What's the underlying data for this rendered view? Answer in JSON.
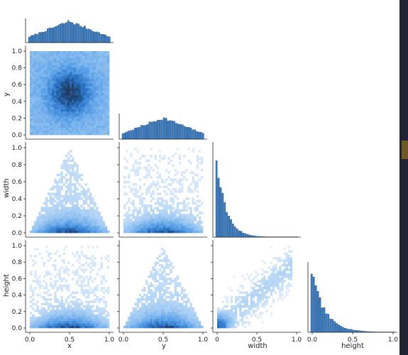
{
  "chart_data": {
    "type": "pairplot",
    "variables": [
      "x",
      "y",
      "width",
      "height"
    ],
    "layout": "lower-triangle (corner) with marginal histograms on the diagonal",
    "diagonal": "histogram",
    "off_diagonal": "2d hexbin/histogram density",
    "color": "#1f77b4",
    "axis_labels": {
      "x": "x",
      "y": "y",
      "width": "width",
      "height": "height"
    },
    "ranges": {
      "x": [
        0.0,
        1.0
      ],
      "y": [
        0.0,
        1.0
      ],
      "width": [
        0.0,
        1.0
      ],
      "height": [
        0.0,
        1.0
      ]
    },
    "ticks": [
      "0.0",
      "0.5",
      "1.0"
    ],
    "y_ticks_y": [
      "0.0",
      "0.2",
      "0.4",
      "0.6",
      "0.8",
      "1.0"
    ],
    "y_ticks_width_height": [
      "0.0",
      "0.2",
      "0.4",
      "0.6",
      "0.8",
      "1.0"
    ],
    "x_ticks_width": [
      "0",
      "0.5",
      "1.0"
    ],
    "diagonal_histograms": {
      "x": {
        "shape": "triangular-peaked",
        "bins": [
          0.05,
          0.1,
          0.15,
          0.2,
          0.25,
          0.3,
          0.35,
          0.4,
          0.45,
          0.5,
          0.55,
          0.6,
          0.65,
          0.7,
          0.75,
          0.8,
          0.85,
          0.9,
          0.95
        ],
        "counts": [
          0.25,
          0.33,
          0.42,
          0.5,
          0.58,
          0.66,
          0.75,
          0.83,
          0.9,
          1.0,
          0.9,
          0.83,
          0.75,
          0.66,
          0.58,
          0.5,
          0.42,
          0.33,
          0.25
        ]
      },
      "y": {
        "shape": "triangular-peaked",
        "bins": [
          0.05,
          0.1,
          0.15,
          0.2,
          0.25,
          0.3,
          0.35,
          0.4,
          0.45,
          0.5,
          0.55,
          0.6,
          0.65,
          0.7,
          0.75,
          0.8,
          0.85,
          0.9,
          0.95
        ],
        "counts": [
          0.2,
          0.28,
          0.36,
          0.46,
          0.56,
          0.65,
          0.75,
          0.84,
          0.93,
          1.0,
          0.93,
          0.84,
          0.75,
          0.65,
          0.56,
          0.46,
          0.36,
          0.28,
          0.2
        ]
      },
      "width": {
        "shape": "exponential-decay",
        "bins": [
          0.025,
          0.05,
          0.075,
          0.1,
          0.125,
          0.15,
          0.175,
          0.2,
          0.25,
          0.3,
          0.35,
          0.4,
          0.5,
          0.6,
          0.7,
          0.8,
          0.9,
          1.0
        ],
        "counts": [
          1.0,
          0.82,
          0.6,
          0.45,
          0.34,
          0.26,
          0.2,
          0.15,
          0.09,
          0.06,
          0.04,
          0.03,
          0.015,
          0.01,
          0.006,
          0.004,
          0.002,
          0.001
        ]
      },
      "height": {
        "shape": "exponential-decay",
        "bins": [
          0.025,
          0.05,
          0.075,
          0.1,
          0.125,
          0.15,
          0.175,
          0.2,
          0.25,
          0.3,
          0.35,
          0.4,
          0.5,
          0.6,
          0.7,
          0.8,
          0.9,
          1.0
        ],
        "counts": [
          1.0,
          0.92,
          0.78,
          0.62,
          0.48,
          0.38,
          0.3,
          0.23,
          0.15,
          0.1,
          0.07,
          0.05,
          0.025,
          0.015,
          0.008,
          0.004,
          0.002,
          0.001
        ]
      }
    },
    "scatter_panels": [
      {
        "row": "y",
        "col": "x",
        "pattern": "uniform square with dense center near (0.5, 0.5)"
      },
      {
        "row": "width",
        "col": "x",
        "pattern": "triangle: width ≤ 2·min(x, 1−x), dense near width≈0"
      },
      {
        "row": "width",
        "col": "y",
        "pattern": "uniform spread, dense near width≈0"
      },
      {
        "row": "height",
        "col": "x",
        "pattern": "uniform spread, dense near height≈0"
      },
      {
        "row": "height",
        "col": "y",
        "pattern": "triangle: height ≤ 2·min(y, 1−y), dense near height≈0"
      },
      {
        "row": "height",
        "col": "width",
        "pattern": "positively correlated cloud, dense near origin"
      }
    ]
  }
}
